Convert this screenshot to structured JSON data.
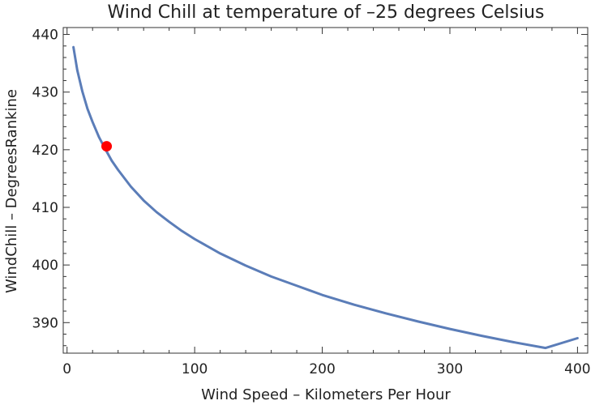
{
  "chart_data": {
    "type": "line",
    "title": "Wind Chill at temperature of –25 degrees Celsius",
    "xlabel": "Wind Speed – Kilometers Per Hour",
    "ylabel": "WindChill – DegreesRankine",
    "xlim": [
      -3,
      408
    ],
    "ylim": [
      384.7,
      441.2
    ],
    "x_ticks": [
      0,
      100,
      200,
      300,
      400
    ],
    "y_ticks": [
      390,
      400,
      410,
      420,
      430,
      440
    ],
    "x_minor_step": 20,
    "y_minor_step": 2,
    "grid": false,
    "line_color": "#5b7db8",
    "marker_color": "#ff0000",
    "series": [
      {
        "x": [
          5,
          8,
          12,
          16,
          20,
          25,
          30,
          35,
          40,
          50,
          60,
          70,
          80,
          90,
          100,
          120,
          140,
          160,
          180,
          200,
          225,
          250,
          275,
          300,
          325,
          350,
          375,
          400
        ],
        "values": [
          437.8,
          433.8,
          430.1,
          427.1,
          424.8,
          422.2,
          420.1,
          418.1,
          416.5,
          413.6,
          411.2,
          409.2,
          407.5,
          405.9,
          404.5,
          402.0,
          399.9,
          398.0,
          396.4,
          394.8,
          393.1,
          391.6,
          390.2,
          388.9,
          387.7,
          386.6,
          385.6,
          387.3
        ]
      }
    ],
    "highlight_point": {
      "x": 31,
      "y": 420.6
    }
  }
}
